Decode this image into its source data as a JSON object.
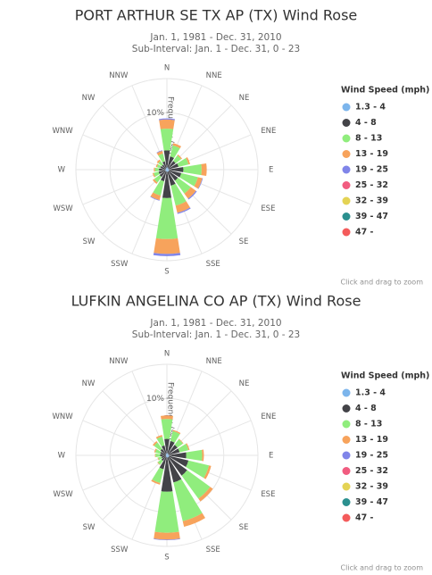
{
  "chart_data": [
    {
      "type": "windrose",
      "title": "PORT ARTHUR SE TX AP (TX) Wind Rose",
      "subtitle": [
        "Jan. 1, 1981 - Dec. 31, 2010",
        "Sub-Interval: Jan. 1 - Dec. 31, 0 - 23"
      ],
      "axis_title": "Frequency (%)",
      "legend_title": "Wind Speed (mph)",
      "zoom_hint": "Click and drag to zoom",
      "categories": [
        "N",
        "NNE",
        "NE",
        "ENE",
        "E",
        "ESE",
        "SE",
        "SSE",
        "S",
        "SSW",
        "SW",
        "WSW",
        "W",
        "WNW",
        "NW",
        "NNW"
      ],
      "rlim": [
        0,
        16
      ],
      "rticks": [
        {
          "value": 10,
          "label": "10%"
        }
      ],
      "series": [
        {
          "name": "1.3 - 4",
          "color": "#7cb5ec",
          "values": [
            0.4,
            0.4,
            0.3,
            0.3,
            0.4,
            0.4,
            0.4,
            0.4,
            0.4,
            0.3,
            0.3,
            0.3,
            0.3,
            0.2,
            0.2,
            0.3
          ]
        },
        {
          "name": "4 - 8",
          "color": "#434348",
          "values": [
            3.0,
            2.0,
            1.6,
            1.8,
            2.5,
            2.2,
            2.0,
            2.5,
            4.6,
            1.8,
            1.3,
            1.2,
            1.1,
            1.0,
            0.9,
            1.2
          ]
        },
        {
          "name": "8 - 13",
          "color": "#90ed7d",
          "values": [
            3.8,
            2.0,
            1.2,
            1.8,
            3.2,
            3.0,
            2.8,
            3.6,
            7.2,
            2.6,
            1.2,
            0.9,
            0.7,
            0.6,
            0.8,
            1.4
          ]
        },
        {
          "name": "13 - 19",
          "color": "#f7a35c",
          "values": [
            1.6,
            0.4,
            0.2,
            0.3,
            0.9,
            0.8,
            1.1,
            1.3,
            2.6,
            0.8,
            0.3,
            0.2,
            0.2,
            0.2,
            0.3,
            0.5
          ]
        },
        {
          "name": "19 - 25",
          "color": "#8085e9",
          "values": [
            0.2,
            0,
            0,
            0,
            0,
            0.1,
            0.2,
            0.2,
            0.4,
            0.1,
            0,
            0,
            0,
            0,
            0,
            0.1
          ]
        },
        {
          "name": "25 - 32",
          "color": "#f15c80",
          "values": [
            0,
            0,
            0,
            0,
            0,
            0,
            0,
            0,
            0,
            0,
            0,
            0,
            0,
            0,
            0,
            0
          ]
        },
        {
          "name": "32 - 39",
          "color": "#e4d354",
          "values": [
            0,
            0,
            0,
            0,
            0,
            0,
            0,
            0,
            0,
            0,
            0,
            0,
            0,
            0,
            0,
            0
          ]
        },
        {
          "name": "39 - 47",
          "color": "#2b908f",
          "values": [
            0,
            0,
            0,
            0,
            0,
            0,
            0,
            0,
            0,
            0,
            0,
            0,
            0,
            0,
            0,
            0
          ]
        },
        {
          "name": "47 -",
          "color": "#f45b5b",
          "values": [
            0,
            0,
            0,
            0,
            0,
            0,
            0,
            0,
            0,
            0,
            0,
            0,
            0,
            0,
            0,
            0
          ]
        }
      ]
    },
    {
      "type": "windrose",
      "title": "LUFKIN ANGELINA CO AP (TX) Wind Rose",
      "subtitle": [
        "Jan. 1, 1981 - Dec. 31, 2010",
        "Sub-Interval: Jan. 1 - Dec. 31, 0 - 23"
      ],
      "axis_title": "Frequency (%)",
      "legend_title": "Wind Speed (mph)",
      "zoom_hint": "Click and drag to zoom",
      "categories": [
        "N",
        "NNE",
        "NE",
        "ENE",
        "E",
        "ESE",
        "SE",
        "SSE",
        "S",
        "SSW",
        "SW",
        "WSW",
        "W",
        "WNW",
        "NW",
        "NNW"
      ],
      "rlim": [
        0,
        16
      ],
      "rticks": [
        {
          "value": 10,
          "label": "10%"
        }
      ],
      "series": [
        {
          "name": "1.3 - 4",
          "color": "#7cb5ec",
          "values": [
            0.4,
            0.4,
            0.3,
            0.3,
            0.4,
            0.4,
            0.4,
            0.4,
            0.4,
            0.3,
            0.2,
            0.2,
            0.2,
            0.2,
            0.2,
            0.3
          ]
        },
        {
          "name": "4 - 8",
          "color": "#434348",
          "values": [
            2.5,
            2.2,
            2.0,
            2.0,
            3.0,
            3.5,
            4.0,
            4.5,
            6.0,
            2.2,
            1.0,
            0.8,
            1.0,
            1.0,
            1.2,
            1.5
          ]
        },
        {
          "name": "8 - 13",
          "color": "#90ed7d",
          "values": [
            3.5,
            1.8,
            1.2,
            1.6,
            2.8,
            3.7,
            5.0,
            7.0,
            7.2,
            2.5,
            0.8,
            0.6,
            0.8,
            0.9,
            1.4,
            1.6
          ]
        },
        {
          "name": "13 - 19",
          "color": "#f7a35c",
          "values": [
            0.6,
            0.2,
            0.1,
            0.2,
            0.3,
            0.4,
            0.6,
            1.0,
            1.2,
            0.3,
            0.1,
            0.1,
            0.1,
            0.2,
            0.3,
            0.3
          ]
        },
        {
          "name": "19 - 25",
          "color": "#8085e9",
          "values": [
            0,
            0,
            0,
            0,
            0,
            0,
            0,
            0,
            0.1,
            0,
            0,
            0,
            0,
            0,
            0,
            0
          ]
        },
        {
          "name": "25 - 32",
          "color": "#f15c80",
          "values": [
            0,
            0,
            0,
            0,
            0,
            0,
            0,
            0,
            0,
            0,
            0,
            0,
            0,
            0,
            0,
            0
          ]
        },
        {
          "name": "32 - 39",
          "color": "#e4d354",
          "values": [
            0,
            0,
            0,
            0,
            0,
            0,
            0,
            0,
            0,
            0,
            0,
            0,
            0,
            0,
            0,
            0
          ]
        },
        {
          "name": "39 - 47",
          "color": "#2b908f",
          "values": [
            0,
            0,
            0,
            0,
            0,
            0,
            0,
            0,
            0,
            0,
            0,
            0,
            0,
            0,
            0,
            0
          ]
        },
        {
          "name": "47 -",
          "color": "#f45b5b",
          "values": [
            0,
            0,
            0,
            0,
            0,
            0,
            0,
            0,
            0,
            0,
            0,
            0,
            0,
            0,
            0,
            0
          ]
        }
      ]
    }
  ]
}
